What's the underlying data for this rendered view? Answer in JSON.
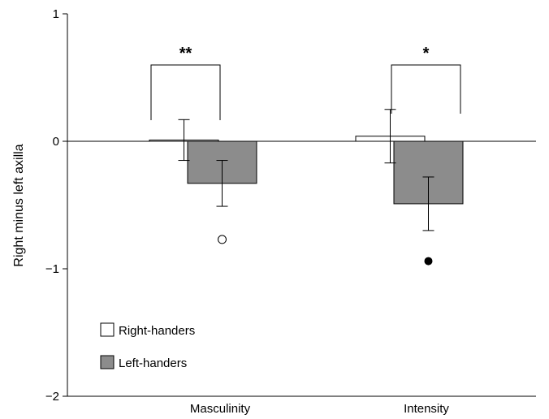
{
  "chart_data": {
    "type": "bar",
    "title": "",
    "xlabel": "",
    "ylabel": "Right minus left axilla",
    "ylim": [
      -2,
      1
    ],
    "yticks": [
      1,
      0,
      -1,
      -2
    ],
    "ytick_labels": [
      "1",
      "0",
      "−1",
      "−2"
    ],
    "categories": [
      "Masculinity",
      "Intensity"
    ],
    "series": [
      {
        "name": "Right-handers",
        "color": "#ffffff",
        "values": [
          0.01,
          0.04
        ],
        "error": [
          0.16,
          0.21
        ]
      },
      {
        "name": "Left-handers",
        "color": "#8c8c8c",
        "values": [
          -0.33,
          -0.49
        ],
        "error": [
          0.18,
          0.21
        ]
      }
    ],
    "outlier_markers": [
      {
        "category": "Masculinity",
        "series": "Left-handers",
        "value": -0.77,
        "style": "open-circle"
      },
      {
        "category": "Intensity",
        "series": "Left-handers",
        "value": -0.94,
        "style": "filled-circle"
      }
    ],
    "significance": [
      {
        "category": "Masculinity",
        "label": "**"
      },
      {
        "category": "Intensity",
        "label": "*"
      }
    ],
    "legend_position": "bottom-left",
    "grid": false,
    "zero_line": true
  }
}
